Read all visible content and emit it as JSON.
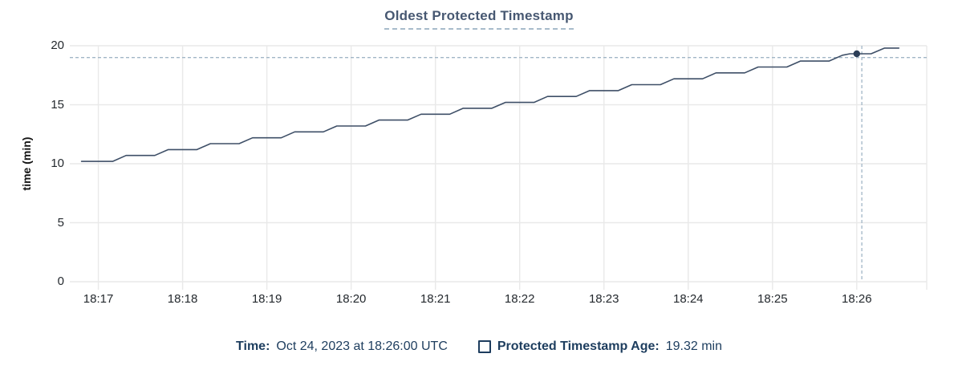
{
  "title": "Oldest Protected Timestamp",
  "y_axis_title": "time (min)",
  "footer": {
    "time_label": "Time:",
    "time_value": "Oct 24, 2023 at 18:26:00 UTC",
    "series_label": "Protected Timestamp Age:",
    "series_value": "19.32 min"
  },
  "colors": {
    "title": "#475872",
    "title_underline": "#a8bccb",
    "grid": "#e9e9e9",
    "line": "#3e4f67",
    "dot": "#2b3e57",
    "crosshair": "#a2b6c6",
    "footer_text": "#1d3d5e",
    "tick_text": "#24292e",
    "background": "#ffffff"
  },
  "chart_data": {
    "type": "line",
    "title": "Oldest Protected Timestamp",
    "xlabel": "",
    "ylabel": "time (min)",
    "x_tick_labels": [
      "18:17",
      "18:18",
      "18:19",
      "18:20",
      "18:21",
      "18:22",
      "18:23",
      "18:24",
      "18:25",
      "18:26"
    ],
    "x_tick_minutes": [
      0,
      1,
      2,
      3,
      4,
      5,
      6,
      7,
      8,
      9
    ],
    "x_minutes_origin": "18:17:00",
    "xlim_minutes": [
      -0.31,
      9.83
    ],
    "y_ticks": [
      0,
      5,
      10,
      15,
      20
    ],
    "ylim": [
      0,
      20
    ],
    "grid": true,
    "legend_position": "bottom",
    "series": [
      {
        "name": "Protected Timestamp Age",
        "unit": "min",
        "color": "#3e4f67",
        "points_t_minutes_value": [
          [
            -0.2,
            10.2
          ],
          [
            0.17,
            10.2
          ],
          [
            0.33,
            10.7
          ],
          [
            0.67,
            10.7
          ],
          [
            0.83,
            11.2
          ],
          [
            1.17,
            11.2
          ],
          [
            1.33,
            11.7
          ],
          [
            1.67,
            11.7
          ],
          [
            1.83,
            12.2
          ],
          [
            2.17,
            12.2
          ],
          [
            2.33,
            12.7
          ],
          [
            2.67,
            12.7
          ],
          [
            2.83,
            13.2
          ],
          [
            3.17,
            13.2
          ],
          [
            3.33,
            13.7
          ],
          [
            3.67,
            13.7
          ],
          [
            3.83,
            14.2
          ],
          [
            4.17,
            14.2
          ],
          [
            4.33,
            14.7
          ],
          [
            4.67,
            14.7
          ],
          [
            4.83,
            15.2
          ],
          [
            5.17,
            15.2
          ],
          [
            5.33,
            15.7
          ],
          [
            5.67,
            15.7
          ],
          [
            5.83,
            16.2
          ],
          [
            6.17,
            16.2
          ],
          [
            6.33,
            16.7
          ],
          [
            6.67,
            16.7
          ],
          [
            6.83,
            17.2
          ],
          [
            7.17,
            17.2
          ],
          [
            7.33,
            17.7
          ],
          [
            7.67,
            17.7
          ],
          [
            7.83,
            18.2
          ],
          [
            8.17,
            18.2
          ],
          [
            8.33,
            18.7
          ],
          [
            8.67,
            18.7
          ],
          [
            8.83,
            19.2
          ],
          [
            8.92,
            19.32
          ],
          [
            9.17,
            19.32
          ],
          [
            9.33,
            19.8
          ],
          [
            9.5,
            19.8
          ]
        ]
      }
    ],
    "hover": {
      "time_label": "Oct 24, 2023 at 18:26:00 UTC",
      "point": {
        "t_minutes": 9.0,
        "value_min": 19.32
      },
      "crosshair_t_minutes": 9.06,
      "crosshair_value_min": 19.0
    }
  }
}
